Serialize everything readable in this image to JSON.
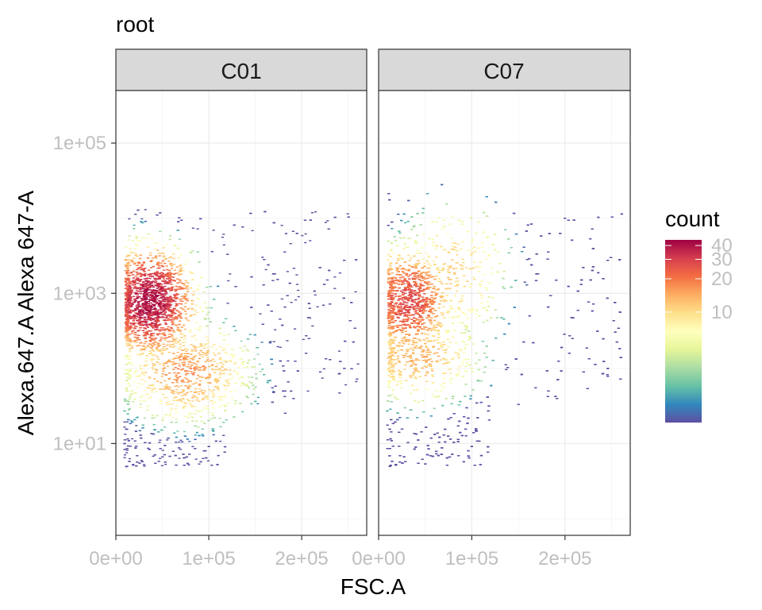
{
  "chart_data": {
    "type": "heatmap",
    "title": "root",
    "xlabel": "FSC.A",
    "ylabel": "Alexa.647.A Alexa 647-A",
    "x_scale": "linear",
    "y_scale": "log10",
    "xlim": [
      0,
      270000
    ],
    "ylim": [
      0.6,
      500000
    ],
    "x_ticks": [
      0,
      100000,
      200000
    ],
    "x_tick_labels": [
      "0e+00",
      "1e+05",
      "2e+05"
    ],
    "y_ticks": [
      10,
      1000,
      100000
    ],
    "y_tick_labels": [
      "1e+01",
      "1e+03",
      "1e+05"
    ],
    "grid": true,
    "tick_label_color": "#bfbfbf",
    "legend": {
      "title": "count",
      "placement": "right",
      "min": 1,
      "max": 45,
      "scale": "log10",
      "ticks": [
        10,
        20,
        30,
        40
      ],
      "tick_labels": [
        "10",
        "20",
        "30",
        "40"
      ],
      "palette": [
        "#5E4FA2",
        "#3288BD",
        "#66C2A5",
        "#ABDDA4",
        "#E6F598",
        "#FFFFBF",
        "#FEE08B",
        "#FDAE61",
        "#F46D43",
        "#D53E4F",
        "#9E0142"
      ]
    },
    "panels": [
      {
        "label": "C01",
        "clusters": [
          {
            "x": 35000,
            "y": 800,
            "peak_count": 45
          },
          {
            "x": 75000,
            "y": 90,
            "peak_count": 18
          }
        ]
      },
      {
        "label": "C07",
        "clusters": [
          {
            "x": 30000,
            "y": 800,
            "peak_count": 30
          },
          {
            "x": 40000,
            "y": 150,
            "peak_count": 15
          },
          {
            "x": 80000,
            "y": 2000,
            "peak_count": 12
          }
        ]
      }
    ]
  }
}
